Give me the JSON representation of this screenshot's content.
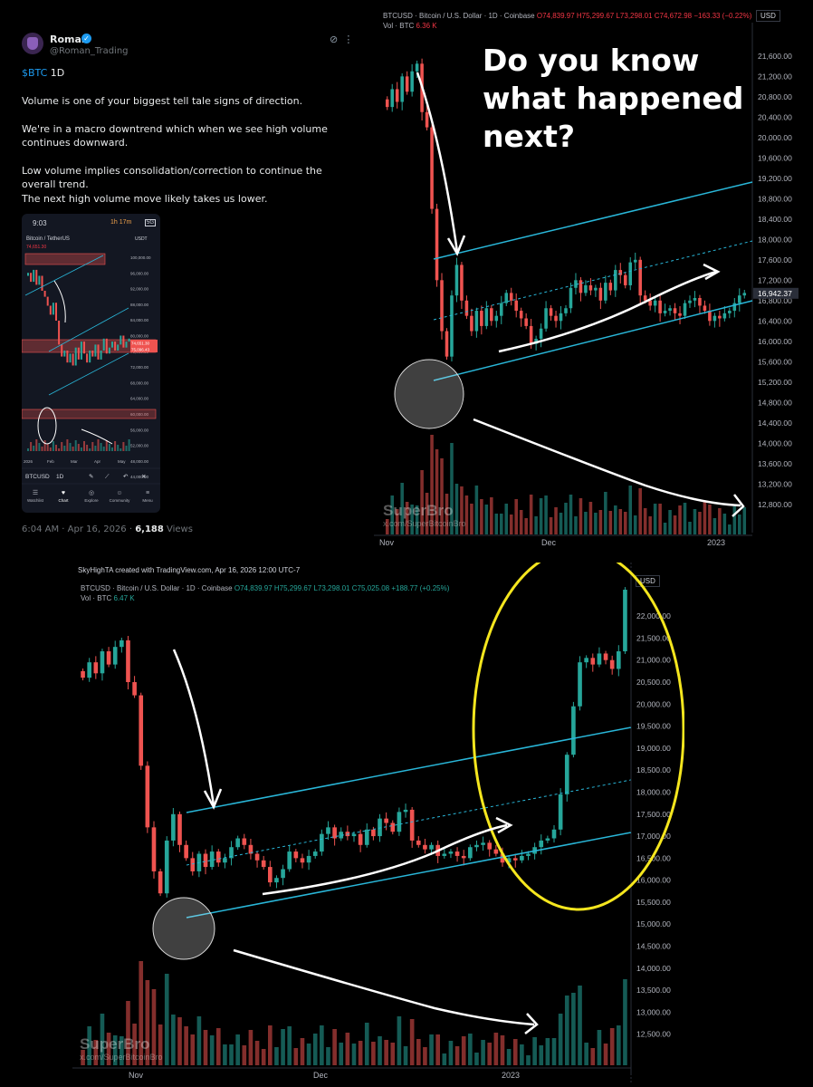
{
  "tweet": {
    "author_name": "Roman",
    "author_handle": "@Roman_Trading",
    "cashtag": "$BTC",
    "cashtag_suffix": " 1D",
    "paragraphs": [
      "Volume is one of your biggest tell tale signs of direction.",
      "We're in a macro downtrend which when we see high volume continues downward.",
      "Low volume implies consolidation/correction to continue the overall trend.",
      "The next high volume move likely takes us lower."
    ],
    "timestamp": "6:04 AM · Apr 16, 2026 · ",
    "views_count": "6,188",
    "views_label": " Views"
  },
  "phone": {
    "status_time": "9:03",
    "timer": "1h 17m",
    "badge": "5G",
    "ticker": "Bitcoin / TetherUS",
    "quote_ccy": "USDT",
    "price_line": "74,651.30",
    "price_tags": [
      "74,651.30",
      "75,096.43"
    ],
    "axis_labels": [
      "100,000.00",
      "96,000.00",
      "92,000.00",
      "88,000.00",
      "84,000.00",
      "80,000.00",
      "76,000.00",
      "72,000.00",
      "68,000.00",
      "64,000.00",
      "60,000.00",
      "56,000.00",
      "52,000.00",
      "48,000.00",
      "44,000.00"
    ],
    "x_labels": [
      "2026",
      "Feb",
      "Mar",
      "Apr",
      "May"
    ],
    "symbol": "BTCUSD",
    "interval": "1D",
    "nav": [
      "Watchlist",
      "Chart",
      "Explore",
      "Community",
      "Menu"
    ]
  },
  "top_chart": {
    "header": "BTCUSD · Bitcoin / U.S. Dollar · 1D · Coinbase",
    "ohlc": "O74,839.97 H75,299.67 L73,298.01 C74,672.98 −163.33 (−0.22%)",
    "vol_label": "Vol · BTC",
    "vol_value": "6.36 K",
    "currency": "USD",
    "annotation": [
      "Do you know",
      "what happened",
      "next?"
    ],
    "last_price": "16,942.37",
    "watermark": "SuperBro",
    "watermark_sub": "x.com/SuperBitcoinBro"
  },
  "bottom_chart": {
    "credit": "SkyHighTA created with TradingView.com, Apr 16, 2026 12:00 UTC-7",
    "header": "BTCUSD · Bitcoin / U.S. Dollar · 1D · Coinbase",
    "ohlc": "O74,839.97 H75,299.67 L73,298.01 C75,025.08 +188.77 (+0.25%)",
    "vol_label": "Vol · BTC",
    "vol_value": "6.47 K",
    "currency": "USD",
    "watermark": "SuperBro",
    "watermark_sub": "x.com/SuperBitcoinBro"
  },
  "chart_data": [
    {
      "type": "candlestick",
      "title": "BTCUSD · Bitcoin / U.S. Dollar · 1D · Coinbase",
      "ylabel": "USD",
      "ylim": [
        12600,
        21900
      ],
      "y_ticks": [
        12800,
        13200,
        13600,
        14000,
        14400,
        14800,
        15200,
        15600,
        16000,
        16400,
        16800,
        17200,
        17600,
        18000,
        18400,
        18800,
        19200,
        19600,
        20000,
        20400,
        20800,
        21200,
        21600
      ],
      "x_labels": [
        "Nov",
        "Dec",
        "2023"
      ],
      "last_price": 16942.37,
      "closes": [
        20600,
        20950,
        20700,
        21200,
        20900,
        21300,
        21450,
        20500,
        20200,
        18600,
        17200,
        16200,
        15700,
        16900,
        17500,
        16800,
        16500,
        16200,
        16600,
        16300,
        16650,
        16400,
        16500,
        16750,
        16950,
        16800,
        16600,
        16450,
        16300,
        15950,
        16050,
        16250,
        16650,
        16500,
        16400,
        16550,
        16650,
        17050,
        17200,
        16950,
        17100,
        17000,
        17050,
        16800,
        17150,
        17000,
        17400,
        17300,
        17100,
        17550,
        17600,
        16900,
        16800,
        16700,
        16800,
        16550,
        16600,
        16650,
        16550,
        16500,
        16750,
        16800,
        16850,
        16700,
        16600,
        16400,
        16500,
        16450,
        16550,
        16600,
        16750,
        16900,
        16950
      ]
    },
    {
      "type": "candlestick",
      "title": "BTCUSD · Bitcoin / U.S. Dollar · 1D · Coinbase",
      "ylabel": "USD",
      "ylim": [
        12000,
        22600
      ],
      "y_ticks": [
        12500,
        13000,
        13500,
        14000,
        14500,
        15000,
        15500,
        16000,
        16500,
        17000,
        17500,
        18000,
        18500,
        19000,
        19500,
        20000,
        20500,
        21000,
        21500,
        22000
      ],
      "x_labels": [
        "Nov",
        "Dec",
        "2023"
      ],
      "closes": [
        20600,
        20950,
        20700,
        21200,
        20900,
        21300,
        21450,
        20500,
        20200,
        18600,
        17200,
        16200,
        15700,
        16900,
        17500,
        16800,
        16500,
        16200,
        16600,
        16300,
        16650,
        16400,
        16500,
        16750,
        16950,
        16800,
        16600,
        16450,
        16300,
        15950,
        16050,
        16250,
        16650,
        16500,
        16400,
        16550,
        16650,
        17050,
        17200,
        16950,
        17100,
        17000,
        17050,
        16800,
        17150,
        17000,
        17400,
        17300,
        17100,
        17550,
        17600,
        16900,
        16800,
        16700,
        16800,
        16550,
        16600,
        16650,
        16550,
        16500,
        16750,
        16800,
        16850,
        16700,
        16600,
        16400,
        16500,
        16450,
        16550,
        16600,
        16750,
        16900,
        16950,
        17150,
        17950,
        18850,
        19950,
        20950,
        21050,
        20900,
        21150,
        21000,
        20800,
        21200,
        22600
      ]
    }
  ]
}
